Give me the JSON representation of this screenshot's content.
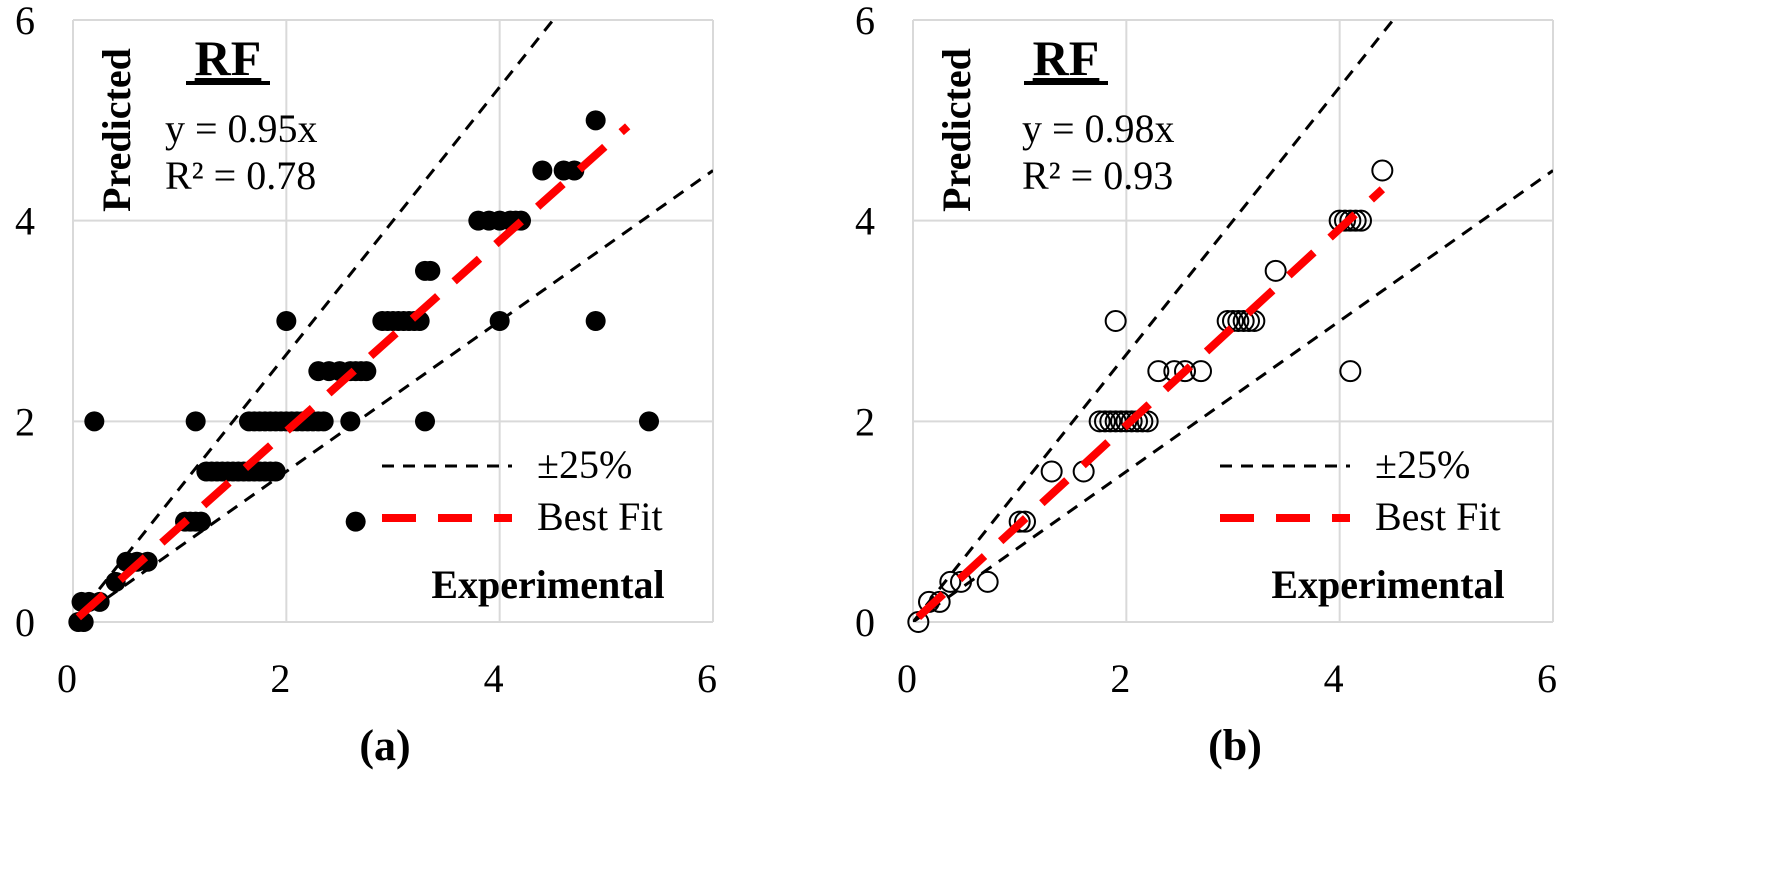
{
  "chart_data": [
    {
      "type": "scatter",
      "panel_label": "(a)",
      "title": "RF",
      "equation": "y = 0.95x",
      "r2": "R² = 0.78",
      "xlabel": "Experimental",
      "ylabel": "Predicted",
      "xlim": [
        0,
        6
      ],
      "ylim": [
        0,
        6
      ],
      "xticks": [
        "0",
        "2",
        "4",
        "6"
      ],
      "yticks": [
        "0",
        "2",
        "4",
        "6"
      ],
      "grid": true,
      "legend_position": "bottom-right",
      "marker": "filled-circle",
      "marker_color": "#000000",
      "legend": [
        {
          "label": "±25%",
          "style": "dashed",
          "color": "#000000"
        },
        {
          "label": "Best Fit",
          "style": "long-dashed",
          "color": "#ff0000"
        }
      ],
      "best_fit": {
        "slope": 0.95,
        "x_range": [
          0.05,
          5.2
        ]
      },
      "bounds": {
        "upper_slope": 1.333,
        "lower_slope": 0.75
      },
      "points": [
        [
          0.05,
          0
        ],
        [
          0.1,
          0
        ],
        [
          0.08,
          0.2
        ],
        [
          0.15,
          0.2
        ],
        [
          0.25,
          0.2
        ],
        [
          0.2,
          2
        ],
        [
          0.4,
          0.4
        ],
        [
          0.5,
          0.6
        ],
        [
          0.6,
          0.6
        ],
        [
          0.7,
          0.6
        ],
        [
          1.05,
          1
        ],
        [
          1.1,
          1
        ],
        [
          1.15,
          1
        ],
        [
          1.2,
          1
        ],
        [
          1.15,
          2
        ],
        [
          1.25,
          1.5
        ],
        [
          1.3,
          1.5
        ],
        [
          1.35,
          1.5
        ],
        [
          1.4,
          1.5
        ],
        [
          1.45,
          1.5
        ],
        [
          1.5,
          1.5
        ],
        [
          1.55,
          1.5
        ],
        [
          1.6,
          1.5
        ],
        [
          1.65,
          1.5
        ],
        [
          1.7,
          1.5
        ],
        [
          1.75,
          1.5
        ],
        [
          1.8,
          1.5
        ],
        [
          1.85,
          1.5
        ],
        [
          1.9,
          1.5
        ],
        [
          1.65,
          2
        ],
        [
          1.7,
          2
        ],
        [
          1.75,
          2
        ],
        [
          1.8,
          2
        ],
        [
          1.85,
          2
        ],
        [
          1.9,
          2
        ],
        [
          1.95,
          2
        ],
        [
          2,
          2
        ],
        [
          2.05,
          2
        ],
        [
          2.1,
          2
        ],
        [
          2.15,
          2
        ],
        [
          2.2,
          2
        ],
        [
          2.25,
          2
        ],
        [
          2.3,
          2
        ],
        [
          2.35,
          2
        ],
        [
          2.0,
          3
        ],
        [
          2.3,
          2.5
        ],
        [
          2.4,
          2.5
        ],
        [
          2.5,
          2.5
        ],
        [
          2.6,
          2.5
        ],
        [
          2.65,
          2.5
        ],
        [
          2.7,
          2.5
        ],
        [
          2.75,
          2.5
        ],
        [
          2.6,
          2
        ],
        [
          2.65,
          1
        ],
        [
          3.3,
          2
        ],
        [
          2.9,
          3
        ],
        [
          2.95,
          3
        ],
        [
          3.0,
          3
        ],
        [
          3.05,
          3
        ],
        [
          3.1,
          3
        ],
        [
          3.15,
          3
        ],
        [
          3.2,
          3
        ],
        [
          3.25,
          3
        ],
        [
          3.3,
          3.5
        ],
        [
          3.35,
          3.5
        ],
        [
          3.8,
          4
        ],
        [
          3.9,
          4
        ],
        [
          4.0,
          4
        ],
        [
          4.1,
          4
        ],
        [
          4.15,
          4
        ],
        [
          4.2,
          4
        ],
        [
          4.0,
          3
        ],
        [
          4.4,
          4.5
        ],
        [
          4.6,
          4.5
        ],
        [
          4.7,
          4.5
        ],
        [
          4.9,
          5
        ],
        [
          4.9,
          3
        ],
        [
          5.4,
          2
        ]
      ]
    },
    {
      "type": "scatter",
      "panel_label": "(b)",
      "title": "RF",
      "equation": "y = 0.98x",
      "r2": "R² = 0.93",
      "xlabel": "Experimental",
      "ylabel": "Predicted",
      "xlim": [
        0,
        6
      ],
      "ylim": [
        0,
        6
      ],
      "xticks": [
        "0",
        "2",
        "4",
        "6"
      ],
      "yticks": [
        "0",
        "2",
        "4",
        "6"
      ],
      "grid": true,
      "legend_position": "bottom-right",
      "marker": "open-circle",
      "marker_color": "#000000",
      "legend": [
        {
          "label": "±25%",
          "style": "dashed",
          "color": "#000000"
        },
        {
          "label": "Best Fit",
          "style": "long-dashed",
          "color": "#ff0000"
        }
      ],
      "best_fit": {
        "slope": 0.98,
        "x_range": [
          0.05,
          4.4
        ]
      },
      "bounds": {
        "upper_slope": 1.333,
        "lower_slope": 0.75
      },
      "points": [
        [
          0.05,
          0
        ],
        [
          0.15,
          0.2
        ],
        [
          0.25,
          0.2
        ],
        [
          0.35,
          0.4
        ],
        [
          0.45,
          0.4
        ],
        [
          0.7,
          0.4
        ],
        [
          1.0,
          1
        ],
        [
          1.05,
          1
        ],
        [
          1.3,
          1.5
        ],
        [
          1.6,
          1.5
        ],
        [
          1.75,
          2
        ],
        [
          1.8,
          2
        ],
        [
          1.85,
          2
        ],
        [
          1.9,
          2
        ],
        [
          1.95,
          2
        ],
        [
          2.0,
          2
        ],
        [
          2.05,
          2
        ],
        [
          2.1,
          2
        ],
        [
          2.15,
          2
        ],
        [
          2.2,
          2
        ],
        [
          1.9,
          3
        ],
        [
          2.3,
          2.5
        ],
        [
          2.45,
          2.5
        ],
        [
          2.55,
          2.5
        ],
        [
          2.7,
          2.5
        ],
        [
          2.95,
          3
        ],
        [
          3.0,
          3
        ],
        [
          3.05,
          3
        ],
        [
          3.1,
          3
        ],
        [
          3.15,
          3
        ],
        [
          3.2,
          3
        ],
        [
          3.4,
          3.5
        ],
        [
          4.0,
          4
        ],
        [
          4.05,
          4
        ],
        [
          4.1,
          4
        ],
        [
          4.15,
          4
        ],
        [
          4.2,
          4
        ],
        [
          4.4,
          4.5
        ],
        [
          4.1,
          2.5
        ]
      ]
    }
  ]
}
